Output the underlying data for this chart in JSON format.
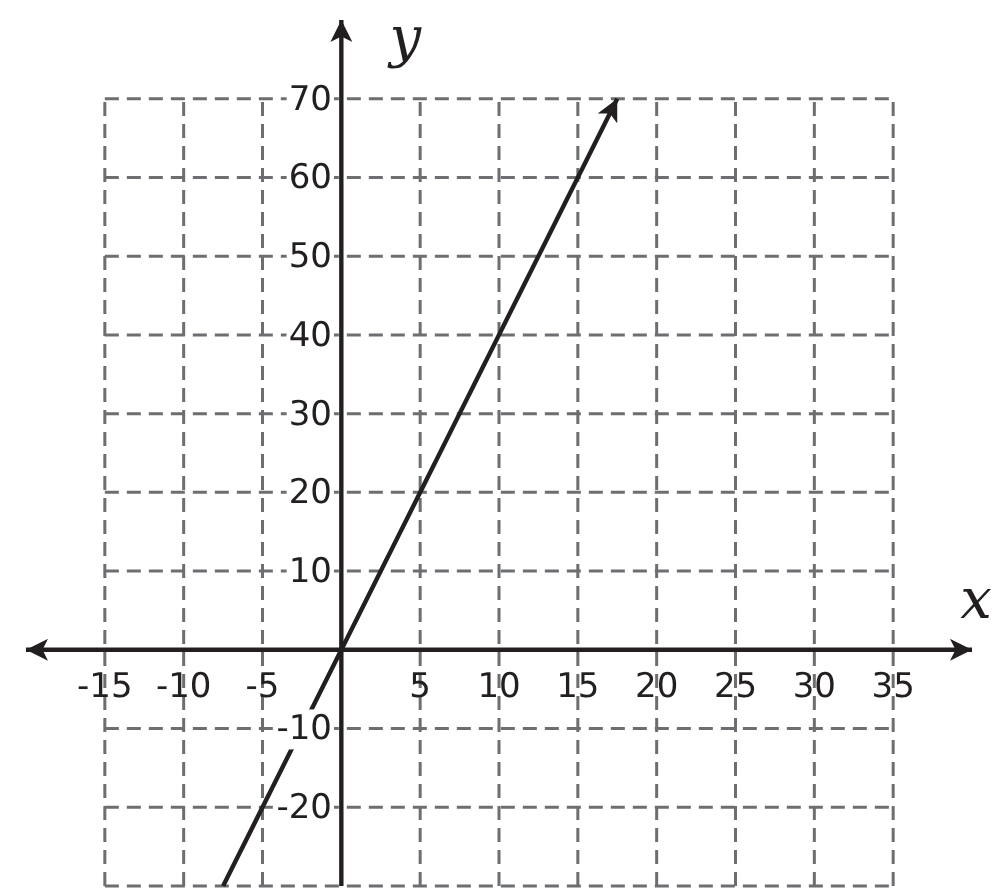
{
  "chart_data": {
    "type": "line",
    "xlabel": "x",
    "ylabel": "y",
    "xlim": [
      -20,
      40
    ],
    "ylim": [
      -30,
      80
    ],
    "xticks": [
      -15,
      -10,
      -5,
      5,
      10,
      15,
      20,
      25,
      30,
      35
    ],
    "yticks": [
      -20,
      -10,
      10,
      20,
      30,
      40,
      50,
      60,
      70
    ],
    "grid": true,
    "marker": "none",
    "line_style": "solid",
    "series": [
      {
        "color": "#231f20",
        "x": [
          -7.5,
          17.5
        ],
        "values": [
          -30,
          70
        ]
      }
    ]
  }
}
